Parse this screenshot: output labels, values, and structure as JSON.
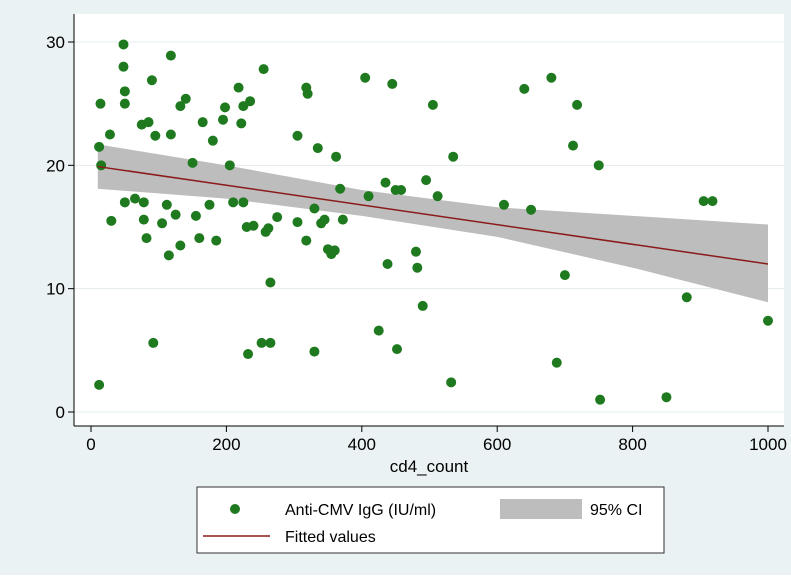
{
  "chart_data": {
    "type": "scatter",
    "xlabel": "cd4_count",
    "ylabel": "",
    "xlim": [
      0,
      1000
    ],
    "ylim": [
      0,
      30
    ],
    "xticks": [
      0,
      200,
      400,
      600,
      800,
      1000
    ],
    "yticks": [
      0,
      10,
      20,
      30
    ],
    "grid": true,
    "legend_position": "bottom",
    "legend": {
      "scatter_label": "Anti-CMV IgG (IU/ml)",
      "ci_label": "95% CI",
      "fit_label": "Fitted values"
    },
    "colors": {
      "points": "#1f7a1f",
      "fit": "#8b1a1a",
      "ci": "#bdbdbd",
      "background": "#eaf2f3",
      "plot_background": "#ffffff",
      "grid": "#e3ecee"
    },
    "fit": {
      "x": [
        10,
        1000
      ],
      "y": [
        19.9,
        12.0
      ]
    },
    "ci": {
      "x": [
        10,
        200,
        400,
        600,
        800,
        1000
      ],
      "upper": [
        21.7,
        20.0,
        18.0,
        16.6,
        15.9,
        15.2
      ],
      "lower": [
        18.1,
        17.3,
        15.9,
        14.2,
        11.7,
        8.9
      ]
    },
    "points": [
      [
        12,
        2.2
      ],
      [
        14,
        25
      ],
      [
        12,
        21.5
      ],
      [
        15,
        20
      ],
      [
        28,
        22.5
      ],
      [
        30,
        15.5
      ],
      [
        48,
        29.8
      ],
      [
        48,
        28
      ],
      [
        50,
        26
      ],
      [
        50,
        25
      ],
      [
        50,
        17
      ],
      [
        65,
        17.3
      ],
      [
        75,
        23.3
      ],
      [
        78,
        17
      ],
      [
        78,
        15.6
      ],
      [
        85,
        23.5
      ],
      [
        82,
        14.1
      ],
      [
        90,
        26.9
      ],
      [
        95,
        22.4
      ],
      [
        92,
        5.6
      ],
      [
        105,
        15.3
      ],
      [
        115,
        12.7
      ],
      [
        112,
        16.8
      ],
      [
        118,
        28.9
      ],
      [
        118,
        22.5
      ],
      [
        125,
        16
      ],
      [
        132,
        24.8
      ],
      [
        132,
        13.5
      ],
      [
        140,
        25.4
      ],
      [
        150,
        20.2
      ],
      [
        155,
        15.9
      ],
      [
        160,
        14.1
      ],
      [
        165,
        23.5
      ],
      [
        175,
        16.8
      ],
      [
        180,
        22
      ],
      [
        185,
        13.9
      ],
      [
        195,
        23.7
      ],
      [
        198,
        24.7
      ],
      [
        205,
        20
      ],
      [
        210,
        17
      ],
      [
        218,
        26.3
      ],
      [
        225,
        24.8
      ],
      [
        222,
        23.4
      ],
      [
        225,
        17
      ],
      [
        230,
        15
      ],
      [
        235,
        25.2
      ],
      [
        232,
        4.7
      ],
      [
        240,
        15.1
      ],
      [
        252,
        5.6
      ],
      [
        255,
        27.8
      ],
      [
        258,
        14.6
      ],
      [
        262,
        14.9
      ],
      [
        265,
        10.5
      ],
      [
        265,
        5.6
      ],
      [
        275,
        15.8
      ],
      [
        305,
        22.4
      ],
      [
        305,
        15.4
      ],
      [
        318,
        13.9
      ],
      [
        318,
        26.3
      ],
      [
        320,
        25.8
      ],
      [
        330,
        4.9
      ],
      [
        335,
        21.4
      ],
      [
        330,
        16.5
      ],
      [
        340,
        15.3
      ],
      [
        345,
        15.6
      ],
      [
        350,
        13.2
      ],
      [
        355,
        12.8
      ],
      [
        360,
        13.1
      ],
      [
        362,
        20.7
      ],
      [
        368,
        18.1
      ],
      [
        372,
        15.6
      ],
      [
        405,
        27.1
      ],
      [
        410,
        17.5
      ],
      [
        425,
        6.6
      ],
      [
        435,
        18.6
      ],
      [
        438,
        12
      ],
      [
        445,
        26.6
      ],
      [
        450,
        18
      ],
      [
        452,
        5.1
      ],
      [
        458,
        18
      ],
      [
        480,
        13
      ],
      [
        482,
        11.7
      ],
      [
        490,
        8.6
      ],
      [
        495,
        18.8
      ],
      [
        505,
        24.9
      ],
      [
        512,
        17.5
      ],
      [
        532,
        2.4
      ],
      [
        535,
        20.7
      ],
      [
        610,
        16.8
      ],
      [
        640,
        26.2
      ],
      [
        650,
        16.4
      ],
      [
        680,
        27.1
      ],
      [
        688,
        4
      ],
      [
        700,
        11.1
      ],
      [
        712,
        21.6
      ],
      [
        718,
        24.9
      ],
      [
        750,
        20
      ],
      [
        752,
        1
      ],
      [
        850,
        1.2
      ],
      [
        880,
        9.3
      ],
      [
        905,
        17.1
      ],
      [
        918,
        17.1
      ],
      [
        1000,
        7.4
      ]
    ]
  }
}
